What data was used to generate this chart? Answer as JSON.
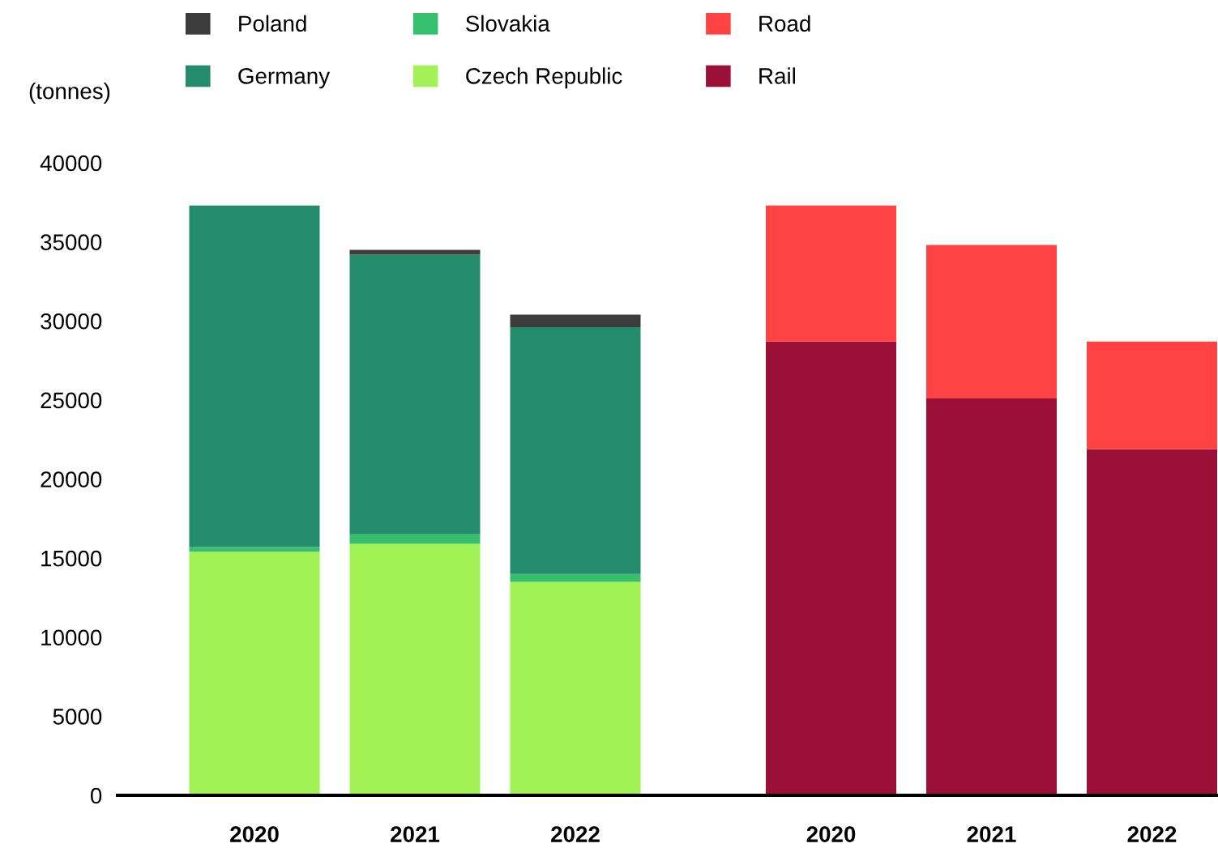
{
  "chart_data": [
    {
      "type": "bar",
      "stacked": true,
      "ylabel": "(tonnes)",
      "categories": [
        "2020",
        "2021",
        "2022"
      ],
      "ylim": [
        0,
        40000
      ],
      "yticks": [
        0,
        5000,
        10000,
        15000,
        20000,
        25000,
        30000,
        35000,
        40000
      ],
      "legend": "top",
      "series": [
        {
          "name": "Czech Republic",
          "color": "#a2f256",
          "values": [
            15400,
            15900,
            13500
          ]
        },
        {
          "name": "Slovakia",
          "color": "#36bf6d",
          "values": [
            300,
            600,
            500
          ]
        },
        {
          "name": "Germany",
          "color": "#248c6a",
          "values": [
            21600,
            17700,
            15600
          ]
        },
        {
          "name": "Poland",
          "color": "#3c3c3c",
          "values": [
            null,
            300,
            800
          ]
        }
      ]
    },
    {
      "type": "bar",
      "stacked": true,
      "categories": [
        "2020",
        "2021",
        "2022"
      ],
      "ylim": [
        0,
        40000
      ],
      "yticks": [
        0,
        5000,
        10000,
        15000,
        20000,
        25000,
        30000,
        35000,
        40000
      ],
      "tick_labels": "x",
      "legend": "top",
      "series": [
        {
          "name": "Rail",
          "color": "#9b1036",
          "values": [
            28700,
            25100,
            21900
          ]
        },
        {
          "name": "Road",
          "color": "#ff4242",
          "values": [
            8600,
            9700,
            6800
          ]
        }
      ]
    }
  ]
}
